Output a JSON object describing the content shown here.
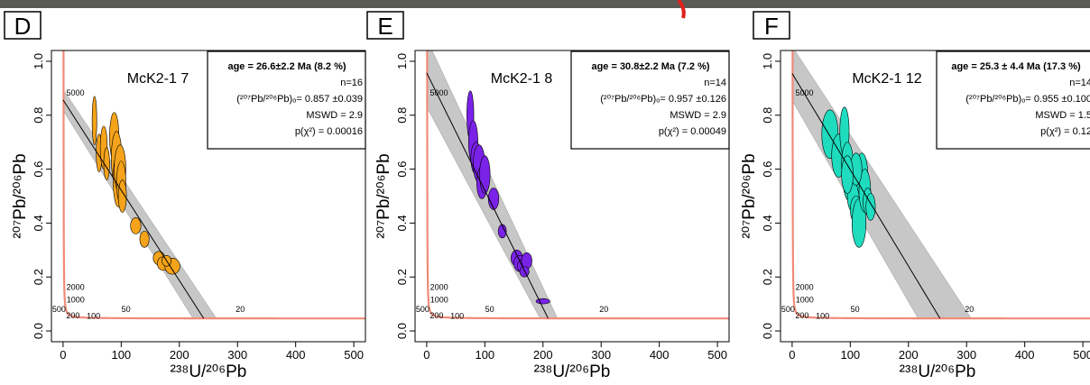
{
  "chart_data": [
    {
      "type": "scatter",
      "panel": "D",
      "title": "McK2-1 7",
      "annotation": [
        "age = 26.6±2.2 Ma (8.2 %)",
        "n=16",
        "(²⁰⁷Pb/²⁰⁶Pb)ₒ= 0.857  ±0.039",
        "MSWD = 2.9",
        "p(χ²) = 0.00016"
      ],
      "xlabel": "²³⁸U/²⁰⁶Pb",
      "ylabel": "²⁰⁷Pb/²⁰⁶Pb",
      "xlim": [
        -20,
        520
      ],
      "ylim": [
        -0.04,
        1.04
      ],
      "xticks": [
        0,
        100,
        200,
        300,
        400,
        500
      ],
      "yticks": [
        {
          "value": 0,
          "label": "0.0"
        },
        0.2,
        0.4,
        0.6,
        0.8,
        {
          "value": 1,
          "label": "1.0"
        }
      ],
      "age": 26.6,
      "age_err": 2.2,
      "intercept": 0.857,
      "intercept_err": 0.039,
      "concordia_color": "#f08a78",
      "concordia_labels": [
        5000,
        2000,
        1000,
        500,
        200,
        100,
        50,
        20
      ],
      "series": [
        {
          "color": "#f5a31a",
          "x": [
            54,
            62,
            70,
            75,
            88,
            92,
            95,
            98,
            100,
            102,
            125,
            140,
            165,
            172,
            188,
            178
          ],
          "y": [
            0.78,
            0.66,
            0.68,
            0.62,
            0.72,
            0.64,
            0.56,
            0.6,
            0.55,
            0.5,
            0.39,
            0.34,
            0.27,
            0.25,
            0.24,
            0.26
          ],
          "x_err": [
            4,
            5,
            6,
            5,
            8,
            9,
            9,
            10,
            8,
            7,
            9,
            8,
            10,
            10,
            13,
            8
          ],
          "y_err": [
            0.09,
            0.07,
            0.08,
            0.06,
            0.09,
            0.1,
            0.1,
            0.09,
            0.08,
            0.06,
            0.03,
            0.03,
            0.025,
            0.025,
            0.03,
            0.02
          ]
        }
      ]
    },
    {
      "type": "scatter",
      "panel": "E",
      "title": "McK2-1 8",
      "annotation": [
        "age = 30.8±2.2 Ma (7.2 %)",
        "n=14",
        "(²⁰⁷Pb/²⁰⁶Pb)ₒ= 0.957  ±0.126",
        "MSWD = 2.9",
        "p(χ²) = 0.00049"
      ],
      "xlabel": "²³⁸U/²⁰⁶Pb",
      "ylabel": "²⁰⁷Pb/²⁰⁶Pb",
      "xlim": [
        -20,
        520
      ],
      "ylim": [
        -0.04,
        1.04
      ],
      "xticks": [
        0,
        100,
        200,
        300,
        400,
        500
      ],
      "yticks": [
        {
          "value": 0,
          "label": "0.0"
        },
        0.2,
        0.4,
        0.6,
        0.8,
        {
          "value": 1,
          "label": "1.0"
        }
      ],
      "age": 30.8,
      "age_err": 2.2,
      "intercept": 0.957,
      "intercept_err": 0.126,
      "concordia_color": "#f08a78",
      "concordia_labels": [
        5000,
        2000,
        1000,
        500,
        200,
        100,
        50,
        20
      ],
      "series": [
        {
          "color": "#7a22e8",
          "x": [
            75,
            80,
            85,
            90,
            95,
            100,
            115,
            130,
            155,
            160,
            165,
            172,
            168,
            200
          ],
          "y": [
            0.8,
            0.7,
            0.64,
            0.62,
            0.55,
            0.58,
            0.49,
            0.37,
            0.27,
            0.25,
            0.24,
            0.26,
            0.22,
            0.11
          ],
          "x_err": [
            6,
            8,
            9,
            10,
            9,
            9,
            9,
            7,
            10,
            10,
            9,
            9,
            8,
            12
          ],
          "y_err": [
            0.09,
            0.08,
            0.06,
            0.07,
            0.06,
            0.07,
            0.04,
            0.025,
            0.03,
            0.03,
            0.025,
            0.03,
            0.02,
            0.01
          ]
        }
      ]
    },
    {
      "type": "scatter",
      "panel": "F",
      "title": "McK2-1 12",
      "annotation": [
        "age = 25.3 ± 4.4 Ma (17.3 %)",
        "n=14",
        "(²⁰⁷Pb/²⁰⁶Pb)ₒ= 0.955  ±0.100",
        "MSWD = 1.5",
        "p(χ²) = 0.12"
      ],
      "xlabel": "²³⁸U/²⁰⁶Pb",
      "ylabel": "²⁰⁷Pb/²⁰⁶Pb",
      "xlim": [
        -20,
        520
      ],
      "ylim": [
        -0.04,
        1.04
      ],
      "xticks": [
        0,
        100,
        200,
        300,
        400,
        500
      ],
      "yticks": [
        {
          "value": 0,
          "label": "0.0"
        },
        0.2,
        0.4,
        0.6,
        0.8,
        {
          "value": 1,
          "label": "1.0"
        }
      ],
      "age": 25.3,
      "age_err": 4.4,
      "intercept": 0.955,
      "intercept_err": 0.1,
      "concordia_color": "#f08a78",
      "concordia_labels": [
        5000,
        2000,
        1000,
        500,
        200,
        100,
        50,
        20
      ],
      "series": [
        {
          "color": "#1fdcbf",
          "x": [
            65,
            80,
            90,
            95,
            100,
            105,
            110,
            115,
            120,
            125,
            130,
            135,
            110,
            95
          ],
          "y": [
            0.73,
            0.65,
            0.74,
            0.62,
            0.55,
            0.5,
            0.45,
            0.4,
            0.58,
            0.52,
            0.48,
            0.46,
            0.6,
            0.58
          ],
          "x_err": [
            14,
            12,
            8,
            10,
            12,
            10,
            10,
            12,
            10,
            10,
            8,
            8,
            10,
            10
          ],
          "y_err": [
            0.09,
            0.08,
            0.09,
            0.08,
            0.07,
            0.06,
            0.05,
            0.09,
            0.08,
            0.08,
            0.05,
            0.05,
            0.06,
            0.07
          ]
        }
      ]
    }
  ]
}
